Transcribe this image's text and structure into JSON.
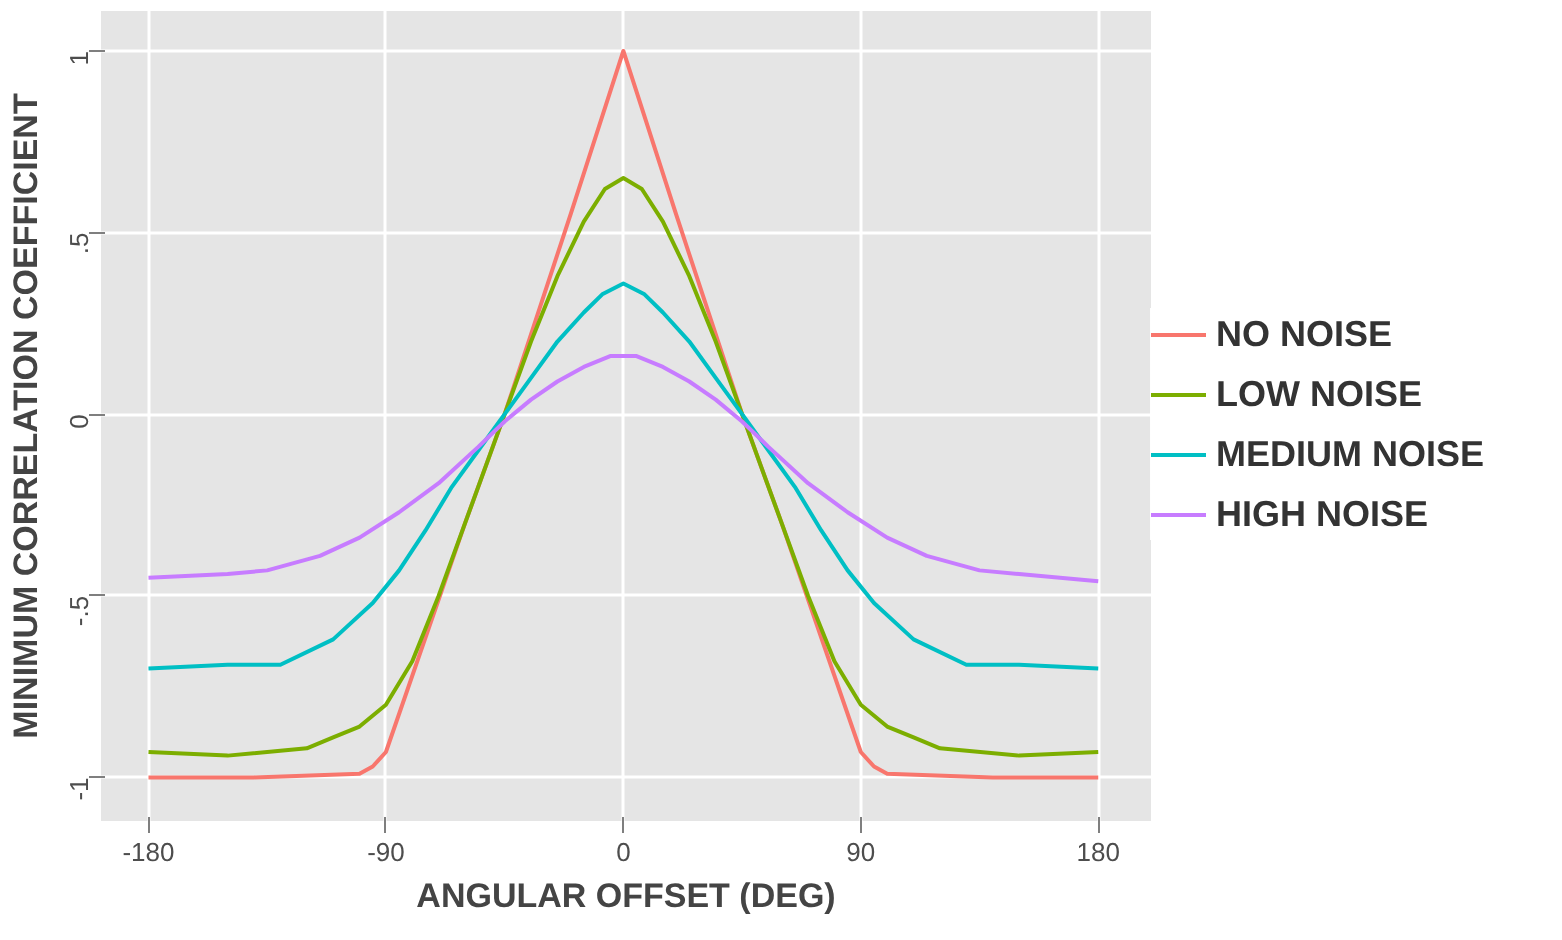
{
  "chart_data": {
    "type": "line",
    "xlabel": "ANGULAR OFFSET (DEG)",
    "ylabel": "MINIMUM CORRELATION COEFFICIENT",
    "xlim": [
      -198,
      200
    ],
    "ylim": [
      -1.12,
      1.11
    ],
    "xticks": [
      -180,
      -90,
      0,
      90,
      180
    ],
    "yticks": [
      {
        "value": -1,
        "label": "-1"
      },
      {
        "value": -0.5,
        "label": "-.5"
      },
      0,
      {
        "value": 0.5,
        "label": ".5"
      },
      1
    ],
    "grid": true,
    "legend": "right",
    "marker": "none",
    "line_style": "solid",
    "series": [
      {
        "name": "NO NOISE",
        "color": "#f8766d",
        "x": [
          -180,
          -140,
          -100,
          -95,
          -90,
          -60,
          -45,
          -20,
          0,
          20,
          45,
          60,
          90,
          95,
          100,
          140,
          180
        ],
        "values": [
          -1,
          -1,
          -0.99,
          -0.97,
          -0.93,
          -0.3,
          0,
          0.55,
          1,
          0.55,
          0,
          -0.3,
          -0.93,
          -0.97,
          -0.99,
          -1,
          -1
        ]
      },
      {
        "name": "LOW NOISE",
        "color": "#7cae00",
        "x": [
          -180,
          -150,
          -120,
          -110,
          -100,
          -90,
          -80,
          -70,
          -60,
          -45,
          -35,
          -25,
          -15,
          -7,
          0,
          7,
          15,
          25,
          35,
          45,
          60,
          70,
          80,
          90,
          100,
          110,
          120,
          150,
          180
        ],
        "values": [
          -0.93,
          -0.94,
          -0.92,
          -0.89,
          -0.86,
          -0.8,
          -0.68,
          -0.5,
          -0.3,
          0,
          0.2,
          0.38,
          0.53,
          0.62,
          0.65,
          0.62,
          0.53,
          0.38,
          0.2,
          0,
          -0.3,
          -0.5,
          -0.68,
          -0.8,
          -0.86,
          -0.89,
          -0.92,
          -0.94,
          -0.93
        ]
      },
      {
        "name": "MEDIUM NOISE",
        "color": "#00bfc4",
        "x": [
          -180,
          -150,
          -130,
          -110,
          -95,
          -85,
          -75,
          -65,
          -55,
          -45,
          -35,
          -25,
          -15,
          -8,
          0,
          8,
          15,
          25,
          35,
          45,
          55,
          65,
          75,
          85,
          95,
          110,
          130,
          150,
          180
        ],
        "values": [
          -0.7,
          -0.69,
          -0.69,
          -0.62,
          -0.52,
          -0.43,
          -0.32,
          -0.2,
          -0.1,
          0,
          0.1,
          0.2,
          0.28,
          0.33,
          0.36,
          0.33,
          0.28,
          0.2,
          0.1,
          0,
          -0.1,
          -0.2,
          -0.32,
          -0.43,
          -0.52,
          -0.62,
          -0.69,
          -0.69,
          -0.7
        ]
      },
      {
        "name": "HIGH NOISE",
        "color": "#c77cff",
        "x": [
          -180,
          -150,
          -135,
          -115,
          -100,
          -85,
          -70,
          -55,
          -45,
          -35,
          -25,
          -15,
          -5,
          0,
          5,
          15,
          25,
          35,
          45,
          55,
          70,
          85,
          100,
          115,
          135,
          150,
          180
        ],
        "values": [
          -0.45,
          -0.44,
          -0.43,
          -0.39,
          -0.34,
          -0.27,
          -0.19,
          -0.09,
          -0.02,
          0.04,
          0.09,
          0.13,
          0.16,
          0.16,
          0.16,
          0.13,
          0.09,
          0.04,
          -0.02,
          -0.09,
          -0.19,
          -0.27,
          -0.34,
          -0.39,
          -0.43,
          -0.44,
          -0.46
        ]
      }
    ]
  }
}
